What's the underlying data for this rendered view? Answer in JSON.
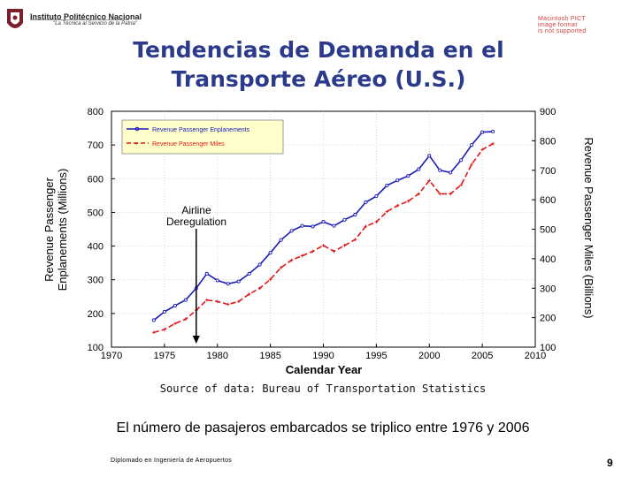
{
  "header": {
    "institution": "Instituto Politécnico Nacional",
    "slogan": "\"La Técnica al Servicio de la Patria\"",
    "notice_lines": [
      "Macintosh PICT",
      "image format",
      "is not supported"
    ]
  },
  "slide": {
    "title_line1": "Tendencias de Demanda en el",
    "title_line2": "Transporte Aéreo (U.S.)",
    "source": "Source of data: Bureau of Transportation Statistics",
    "caption": "El número de pasajeros embarcados se triplico entre 1976 y 2006",
    "footer": "Diplomado en Ingeniería de Aeropuertos",
    "page_number": "9"
  },
  "colors": {
    "title": "#2b3a8a",
    "enplanements": "#1a1ab8",
    "miles": "#e01818",
    "legend_bg": "#ffffcc"
  },
  "chart_data": {
    "type": "line",
    "title": "",
    "xlabel": "Calendar Year",
    "ylabel": "Revenue Passenger Enplanements (Millions)",
    "ylabel_line1": "Revenue Passenger",
    "ylabel_line2": "Enplanements (Millions)",
    "y2label": "Revenue Passenger Miles (Billions)",
    "xlim": [
      1970,
      2010
    ],
    "ylim": [
      100,
      800
    ],
    "y2lim": [
      100,
      900
    ],
    "xticks": [
      1970,
      1975,
      1980,
      1985,
      1990,
      1995,
      2000,
      2005,
      2010
    ],
    "yticks": [
      100,
      200,
      300,
      400,
      500,
      600,
      700,
      800
    ],
    "y2ticks": [
      100,
      200,
      300,
      400,
      500,
      600,
      700,
      800,
      900
    ],
    "legend": [
      "Revenue Passenger Enplanements",
      "Revenue Passenger Miles"
    ],
    "annotation_line1": "Airline",
    "annotation_line2": "Deregulation",
    "annotation_year": 1978,
    "series": [
      {
        "name": "Revenue Passenger Enplanements",
        "axis": "left",
        "style": "solid",
        "x": [
          1974,
          1975,
          1976,
          1977,
          1978,
          1979,
          1980,
          1981,
          1982,
          1983,
          1984,
          1985,
          1986,
          1987,
          1988,
          1989,
          1990,
          1991,
          1992,
          1993,
          1994,
          1995,
          1996,
          1997,
          1998,
          1999,
          2000,
          2001,
          2002,
          2003,
          2004,
          2005,
          2006
        ],
        "values": [
          180,
          205,
          223,
          240,
          275,
          318,
          298,
          288,
          295,
          318,
          345,
          380,
          418,
          445,
          460,
          458,
          472,
          460,
          478,
          493,
          530,
          548,
          580,
          595,
          608,
          628,
          668,
          625,
          618,
          655,
          700,
          738,
          740
        ]
      },
      {
        "name": "Revenue Passenger Miles",
        "axis": "right",
        "style": "dashed",
        "x": [
          1974,
          1975,
          1976,
          1977,
          1978,
          1979,
          1980,
          1981,
          1982,
          1983,
          1984,
          1985,
          1986,
          1987,
          1988,
          1989,
          1990,
          1991,
          1992,
          1993,
          1994,
          1995,
          1996,
          1997,
          1998,
          1999,
          2000,
          2001,
          2002,
          2003,
          2004,
          2005,
          2006
        ],
        "values": [
          150,
          160,
          180,
          195,
          225,
          260,
          255,
          245,
          255,
          280,
          300,
          330,
          370,
          395,
          410,
          425,
          445,
          425,
          445,
          465,
          510,
          525,
          560,
          580,
          595,
          620,
          665,
          620,
          620,
          650,
          720,
          770,
          790
        ]
      }
    ]
  }
}
